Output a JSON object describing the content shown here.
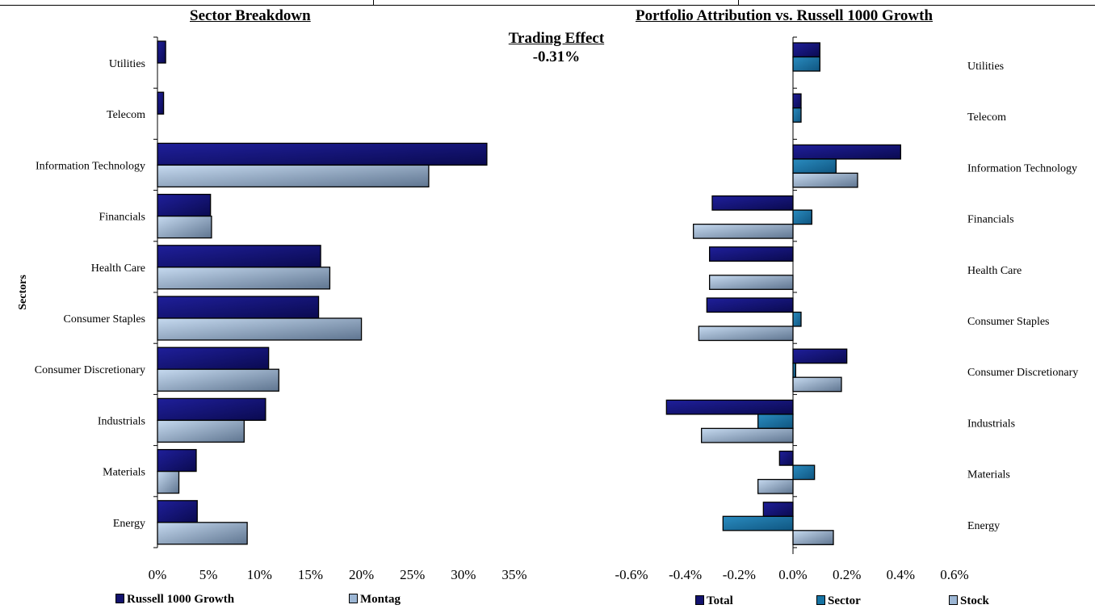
{
  "header": {
    "left_title": "Sector Breakdown",
    "right_title": "Portfolio Attribution vs. Russell 1000 Growth",
    "trading_label": "Trading Effect",
    "trading_value": "-0.31%"
  },
  "colors": {
    "russell": "#12126e",
    "montag": "#9cb6d4",
    "total": "#12126e",
    "sector": "#1673a3",
    "stock": "#9cb6d4"
  },
  "chart_data": [
    {
      "type": "bar",
      "orientation": "horizontal",
      "title": "Sector Breakdown",
      "ylabel": "Sectors",
      "categories": [
        "Utilities",
        "Telecom",
        "Information Technology",
        "Financials",
        "Health Care",
        "Consumer Staples",
        "Consumer Discretionary",
        "Industrials",
        "Materials",
        "Energy"
      ],
      "xlim": [
        0,
        35
      ],
      "xticks": [
        "0%",
        "5%",
        "10%",
        "15%",
        "20%",
        "25%",
        "30%",
        "35%"
      ],
      "series": [
        {
          "name": "Russell 1000 Growth",
          "values": [
            0.8,
            0.6,
            32.3,
            5.2,
            16.0,
            15.8,
            10.9,
            10.6,
            3.8,
            3.9
          ]
        },
        {
          "name": "Montag",
          "values": [
            0,
            0,
            26.6,
            5.3,
            16.9,
            20.0,
            11.9,
            8.5,
            2.1,
            8.8
          ]
        }
      ],
      "legend": "bottom"
    },
    {
      "type": "bar",
      "orientation": "horizontal",
      "title": "Portfolio Attribution vs. Russell 1000 Growth",
      "categories": [
        "Utilities",
        "Telecom",
        "Information Technology",
        "Financials",
        "Health Care",
        "Consumer Staples",
        "Consumer Discretionary",
        "Industrials",
        "Materials",
        "Energy"
      ],
      "xlim": [
        -0.6,
        0.6
      ],
      "xticks": [
        "-0.6%",
        "-0.4%",
        "-0.2%",
        "0.0%",
        "0.2%",
        "0.4%",
        "0.6%"
      ],
      "series": [
        {
          "name": "Total",
          "values": [
            0.1,
            0.03,
            0.4,
            -0.3,
            -0.31,
            -0.32,
            0.2,
            -0.47,
            -0.05,
            -0.11
          ]
        },
        {
          "name": "Sector",
          "values": [
            0.1,
            0.03,
            0.16,
            0.07,
            0,
            0.03,
            0.01,
            -0.13,
            0.08,
            -0.26
          ]
        },
        {
          "name": "Stock",
          "values": [
            0,
            0,
            0.24,
            -0.37,
            -0.31,
            -0.35,
            0.18,
            -0.34,
            -0.13,
            0.15
          ]
        }
      ],
      "legend": "bottom"
    }
  ]
}
